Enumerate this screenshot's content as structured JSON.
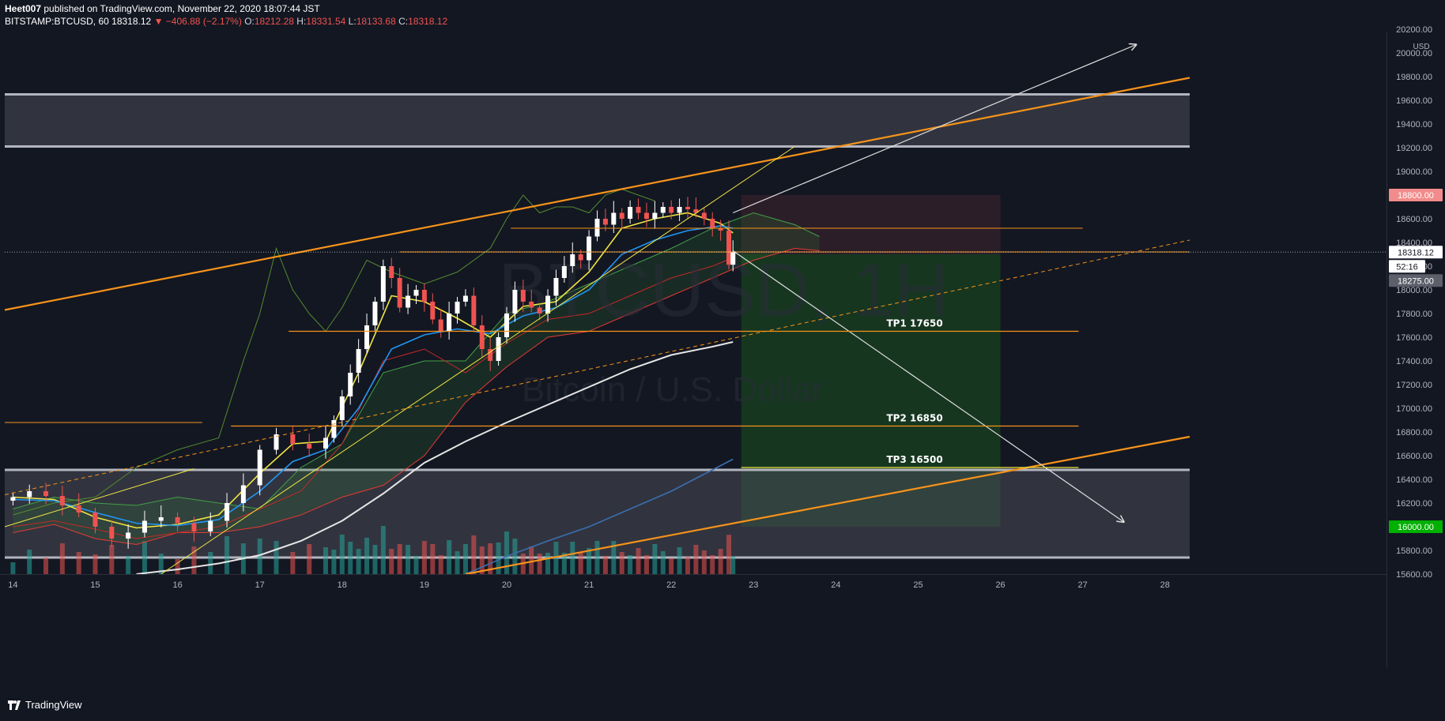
{
  "header": {
    "author": "Heet007",
    "published": "published on TradingView.com, November 22, 2020 18:07:44 JST",
    "symbol": "BITSTAMP:BTCUSD, 60",
    "last": "18318.12",
    "change": "▼ −406.88 (−2.17%)",
    "o_label": "O:",
    "o": "18212.28",
    "h_label": "H:",
    "h": "18331.54",
    "l_label": "L:",
    "l": "18133.68",
    "c_label": "C:",
    "c": "18318.12"
  },
  "footer": {
    "brand": "TradingView"
  },
  "colors": {
    "background": "#131722",
    "up": "#ffffff",
    "down": "#ef5350",
    "trend_orange": "#f7931a",
    "ema_yellow": "#f0e442",
    "ema_blue": "#2196f3",
    "ma_white": "#e6e6e6",
    "cloud_green": "#2e7d32",
    "cloud_red": "#b71c1c",
    "target_zone": "#1b5e20",
    "stop_zone": "#5d2a35",
    "zone_gray": "#4a4d57"
  },
  "watermark": {
    "line1": "BTCUSD, 1H",
    "line2": "Bitcoin / U.S. Dollar"
  },
  "chart_data": {
    "type": "candlestick",
    "price_axis": {
      "unit": "USD",
      "ylim": [
        15600,
        20200
      ],
      "ticks": [
        15600,
        15800,
        16000,
        16200,
        16400,
        16600,
        16800,
        17000,
        17200,
        17400,
        17600,
        17800,
        18000,
        18200,
        18400,
        18600,
        18800,
        19000,
        19200,
        19400,
        19600,
        19800,
        20000,
        20200
      ],
      "tick_labels": [
        "15600.00",
        "15800.00",
        "16000.00",
        "16200.00",
        "16400.00",
        "16600.00",
        "16800.00",
        "17000.00",
        "17200.00",
        "17400.00",
        "17600.00",
        "17800.00",
        "18000.00",
        "18200.00",
        "18400.00",
        "18600.00",
        "18800.00",
        "19000.00",
        "19200.00",
        "19400.00",
        "19600.00",
        "19800.00",
        "20000.00",
        "20200.00"
      ]
    },
    "time_axis": {
      "xlim": [
        13.9,
        28.3
      ],
      "ticks": [
        14,
        15,
        16,
        17,
        18,
        19,
        20,
        21,
        22,
        23,
        24,
        25,
        26,
        27,
        28
      ],
      "tick_labels": [
        "14",
        "15",
        "16",
        "17",
        "18",
        "19",
        "20",
        "21",
        "22",
        "23",
        "24",
        "25",
        "26",
        "27",
        "28"
      ]
    },
    "price_labels": [
      {
        "text": "18800.00",
        "price": 18800,
        "style": "stop"
      },
      {
        "text": "18318.12",
        "price": 18318.12,
        "style": "last"
      },
      {
        "text": "52:16",
        "price": 18270,
        "style": "timer"
      },
      {
        "text": "18275.00",
        "price": 18275,
        "style": "gray"
      },
      {
        "text": "16000.00",
        "price": 16000,
        "style": "target"
      }
    ],
    "targets": [
      {
        "label": "TP1  17650",
        "price": 17650,
        "x0": 17.35,
        "x1": 26.95,
        "label_x": 25.0
      },
      {
        "label": "TP2  16850",
        "price": 16850,
        "x0": 16.65,
        "x1": 26.95,
        "label_x": 25.0
      },
      {
        "label": "TP3  16500",
        "price": 16500,
        "x0": 22.85,
        "x1": 26.95,
        "label_x": 25.0
      }
    ],
    "horizontal_lines": [
      {
        "price": 18320,
        "x0": 18.7,
        "x1": 28.3,
        "color": "#f7931a"
      },
      {
        "price": 18520,
        "x0": 20.05,
        "x1": 27.0,
        "color": "#f7931a"
      },
      {
        "price": 16880,
        "x0": 13.9,
        "x1": 16.3,
        "color": "#f7931a"
      }
    ],
    "zones": [
      {
        "name": "upper-resistance",
        "y0": 19210,
        "y1": 19650,
        "x0": 13.9,
        "x1": 28.3
      },
      {
        "name": "lower-support",
        "y0": 15740,
        "y1": 16480,
        "x0": 13.9,
        "x1": 28.3
      }
    ],
    "position": {
      "entry": 18300,
      "stop": 18800,
      "target": 16000,
      "x0": 22.85,
      "x1": 26.0
    },
    "trendlines": [
      {
        "from": [
          13.9,
          17830
        ],
        "to": [
          28.3,
          19790
        ],
        "color": "#f7931a",
        "width": 2.2
      },
      {
        "from": [
          19.5,
          15600
        ],
        "to": [
          28.3,
          16760
        ],
        "color": "#f7931a",
        "width": 2.2
      },
      {
        "from": [
          13.9,
          16270
        ],
        "to": [
          28.3,
          18420
        ],
        "color": "#f7931a",
        "width": 1,
        "dash": true
      },
      {
        "from": [
          15.8,
          15600
        ],
        "to": [
          23.5,
          19210
        ],
        "color": "#f0e442",
        "width": 1
      },
      {
        "from": [
          13.9,
          16000
        ],
        "to": [
          16.2,
          16490
        ],
        "color": "#f0e442",
        "width": 1
      },
      {
        "from": [
          22.75,
          18330
        ],
        "to": [
          27.5,
          16040
        ],
        "color": "#e0e0e0",
        "width": 1.2,
        "arrow": true
      },
      {
        "from": [
          22.75,
          18650
        ],
        "to": [
          27.65,
          20070
        ],
        "color": "#e0e0e0",
        "width": 1.2,
        "arrow": true
      }
    ],
    "series": [
      {
        "name": "close",
        "kind": "candles",
        "x": [
          14.0,
          14.2,
          14.4,
          14.6,
          14.8,
          15.0,
          15.2,
          15.4,
          15.6,
          15.8,
          16.0,
          16.2,
          16.4,
          16.6,
          16.8,
          17.0,
          17.2,
          17.4,
          17.6,
          17.8,
          17.9,
          18.0,
          18.1,
          18.2,
          18.3,
          18.4,
          18.5,
          18.6,
          18.7,
          18.8,
          18.9,
          19.0,
          19.1,
          19.2,
          19.3,
          19.4,
          19.5,
          19.6,
          19.7,
          19.8,
          19.9,
          20.0,
          20.1,
          20.2,
          20.3,
          20.4,
          20.5,
          20.6,
          20.7,
          20.8,
          20.9,
          21.0,
          21.1,
          21.2,
          21.3,
          21.4,
          21.5,
          21.6,
          21.7,
          21.8,
          21.9,
          22.0,
          22.1,
          22.2,
          22.3,
          22.4,
          22.5,
          22.6,
          22.7,
          22.75
        ],
        "open": [
          16220,
          16250,
          16300,
          16260,
          16180,
          16120,
          16000,
          15900,
          15950,
          16050,
          16080,
          16030,
          15960,
          16050,
          16200,
          16350,
          16650,
          16780,
          16700,
          16660,
          16750,
          16900,
          17100,
          17300,
          17500,
          17700,
          17900,
          18200,
          18100,
          17850,
          17950,
          18000,
          17900,
          17750,
          17650,
          17800,
          17900,
          17950,
          17700,
          17500,
          17400,
          17600,
          17800,
          18000,
          17900,
          17850,
          17800,
          17950,
          18100,
          18200,
          18300,
          18250,
          18450,
          18600,
          18550,
          18650,
          18600,
          18700,
          18650,
          18600,
          18650,
          18700,
          18650,
          18700,
          18680,
          18650,
          18600,
          18520,
          18500,
          18212
        ],
        "close": [
          16250,
          16300,
          16260,
          16180,
          16120,
          16000,
          15900,
          15950,
          16050,
          16080,
          16030,
          15960,
          16050,
          16200,
          16350,
          16650,
          16780,
          16700,
          16660,
          16750,
          16900,
          17100,
          17300,
          17500,
          17700,
          17900,
          18200,
          18100,
          17850,
          17950,
          18000,
          17900,
          17750,
          17650,
          17800,
          17900,
          17950,
          17700,
          17500,
          17400,
          17600,
          17800,
          18000,
          17900,
          17850,
          17800,
          17950,
          18100,
          18200,
          18300,
          18250,
          18450,
          18600,
          18550,
          18650,
          18600,
          18700,
          18650,
          18600,
          18650,
          18700,
          18650,
          18700,
          18680,
          18650,
          18600,
          18520,
          18500,
          18212,
          18318
        ]
      },
      {
        "name": "EMA fast",
        "color": "#f0e442",
        "x": [
          14.0,
          14.5,
          15.0,
          15.5,
          16.0,
          16.5,
          17.0,
          17.4,
          17.8,
          18.2,
          18.6,
          19.0,
          19.4,
          19.8,
          20.2,
          20.6,
          21.0,
          21.4,
          21.8,
          22.2,
          22.6,
          22.75
        ],
        "values": [
          16250,
          16230,
          16080,
          15990,
          16020,
          16100,
          16450,
          16700,
          16720,
          17300,
          17950,
          17900,
          17760,
          17600,
          17860,
          17900,
          18150,
          18520,
          18600,
          18650,
          18560,
          18480
        ]
      },
      {
        "name": "EMA mid",
        "color": "#2196f3",
        "x": [
          14.0,
          14.5,
          15.0,
          15.5,
          16.0,
          16.5,
          17.0,
          17.4,
          17.8,
          18.2,
          18.6,
          19.0,
          19.4,
          19.8,
          20.2,
          20.6,
          21.0,
          21.4,
          21.8,
          22.2,
          22.6,
          22.75
        ],
        "values": [
          16230,
          16220,
          16120,
          16030,
          16010,
          16060,
          16300,
          16550,
          16650,
          17000,
          17500,
          17620,
          17670,
          17630,
          17780,
          17850,
          18000,
          18300,
          18420,
          18500,
          18540,
          18520
        ]
      },
      {
        "name": "MA 200",
        "color": "#e6e6e6",
        "x": [
          15.5,
          16.0,
          16.5,
          17.0,
          17.5,
          18.0,
          18.5,
          19.0,
          19.5,
          20.0,
          20.5,
          21.0,
          21.5,
          22.0,
          22.5,
          22.75
        ],
        "values": [
          15600,
          15640,
          15690,
          15760,
          15880,
          16050,
          16280,
          16540,
          16720,
          16880,
          17030,
          17180,
          17330,
          17450,
          17520,
          17560
        ]
      },
      {
        "name": "MA long",
        "color": "#3a6fb0",
        "x": [
          19.5,
          20.0,
          20.5,
          21.0,
          21.5,
          22.0,
          22.5,
          22.75
        ],
        "values": [
          15600,
          15750,
          15880,
          16000,
          16150,
          16300,
          16480,
          16570
        ]
      }
    ],
    "cloud": {
      "x": [
        14.0,
        14.5,
        15.0,
        15.5,
        16.0,
        16.5,
        17.0,
        17.5,
        18.0,
        18.5,
        19.0,
        19.5,
        20.0,
        20.5,
        21.0,
        21.5,
        22.0,
        22.5,
        23.0,
        23.5,
        23.8
      ],
      "upper": [
        16150,
        16250,
        16200,
        16180,
        16250,
        16200,
        16150,
        16500,
        16700,
        17300,
        17400,
        17400,
        17800,
        17900,
        18050,
        18200,
        18350,
        18520,
        18650,
        18550,
        18450
      ],
      "lower": [
        15950,
        16020,
        15900,
        15850,
        15950,
        15950,
        16000,
        16100,
        16250,
        16350,
        16600,
        17050,
        17350,
        17600,
        17650,
        17800,
        17950,
        18100,
        18250,
        18350,
        18330
      ]
    },
    "lagging_span": {
      "x": [
        14.0,
        14.5,
        15.0,
        15.5,
        16.0,
        16.5,
        16.8,
        17.0,
        17.2,
        17.4,
        17.6,
        17.8,
        18.0,
        18.3,
        18.6,
        19.0,
        19.4,
        19.8,
        20.0,
        20.2,
        20.4,
        20.6,
        20.8,
        21.0,
        21.2,
        21.4,
        21.6,
        21.8
      ],
      "values": [
        16100,
        16200,
        16250,
        16500,
        16650,
        16750,
        17400,
        17800,
        18350,
        18000,
        17800,
        17650,
        17850,
        18250,
        18150,
        18050,
        18150,
        18350,
        18600,
        18800,
        18650,
        18700,
        18700,
        18650,
        18800,
        18850,
        18800,
        18750
      ]
    },
    "base_line": {
      "x": [
        14.0,
        14.5,
        15.0,
        15.5,
        16.0,
        16.5,
        17.0,
        17.5,
        18.0,
        18.5,
        19.0,
        19.5,
        20.0,
        20.5,
        21.0,
        21.5,
        22.0,
        22.5,
        22.75
      ],
      "values": [
        16000,
        16050,
        15980,
        15900,
        15950,
        16000,
        16150,
        16300,
        16700,
        17400,
        17500,
        17300,
        17550,
        17750,
        17800,
        17950,
        18100,
        18200,
        18270
      ]
    },
    "volume_scale_max": 1
  }
}
